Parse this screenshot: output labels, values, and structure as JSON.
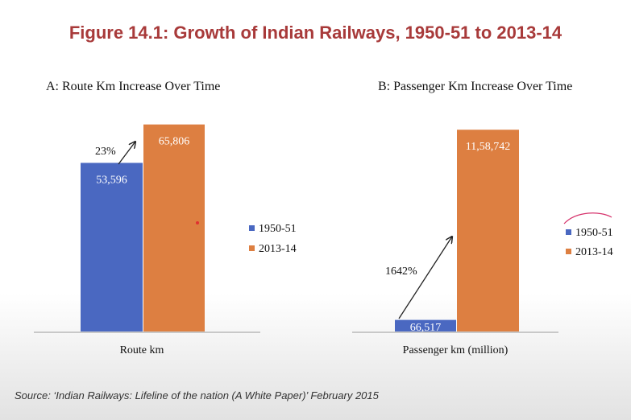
{
  "title": "Figure 14.1: Growth of Indian Railways, 1950-51 to 2013-14",
  "source": "Source: ‘Indian Railways: Lifeline of the nation (A White Paper)’ February 2015",
  "colors": {
    "title": "#a83a3a",
    "series_1950": "#4a68c1",
    "series_2013": "#dd7f41"
  },
  "chart_data": [
    {
      "type": "bar",
      "title": "A: Route Km Increase Over Time",
      "categories": [
        "Route km"
      ],
      "series": [
        {
          "name": "1950-51",
          "values": [
            53596
          ],
          "labels": [
            "53,596"
          ]
        },
        {
          "name": "2013-14",
          "values": [
            65806
          ],
          "labels": [
            "65,806"
          ]
        }
      ],
      "annotation": "23%",
      "legend_position": "right",
      "ylim": [
        0,
        78000
      ],
      "grid": false
    },
    {
      "type": "bar",
      "title": "B: Passenger Km Increase Over Time",
      "categories": [
        "Passenger km (million)"
      ],
      "series": [
        {
          "name": "1950-51",
          "values": [
            66517
          ],
          "labels": [
            "66,517"
          ]
        },
        {
          "name": "2013-14",
          "values": [
            1158742
          ],
          "labels": [
            "11,58,742"
          ]
        }
      ],
      "annotation": "1642%",
      "legend_position": "right",
      "ylim": [
        0,
        1340000
      ],
      "grid": false
    }
  ]
}
